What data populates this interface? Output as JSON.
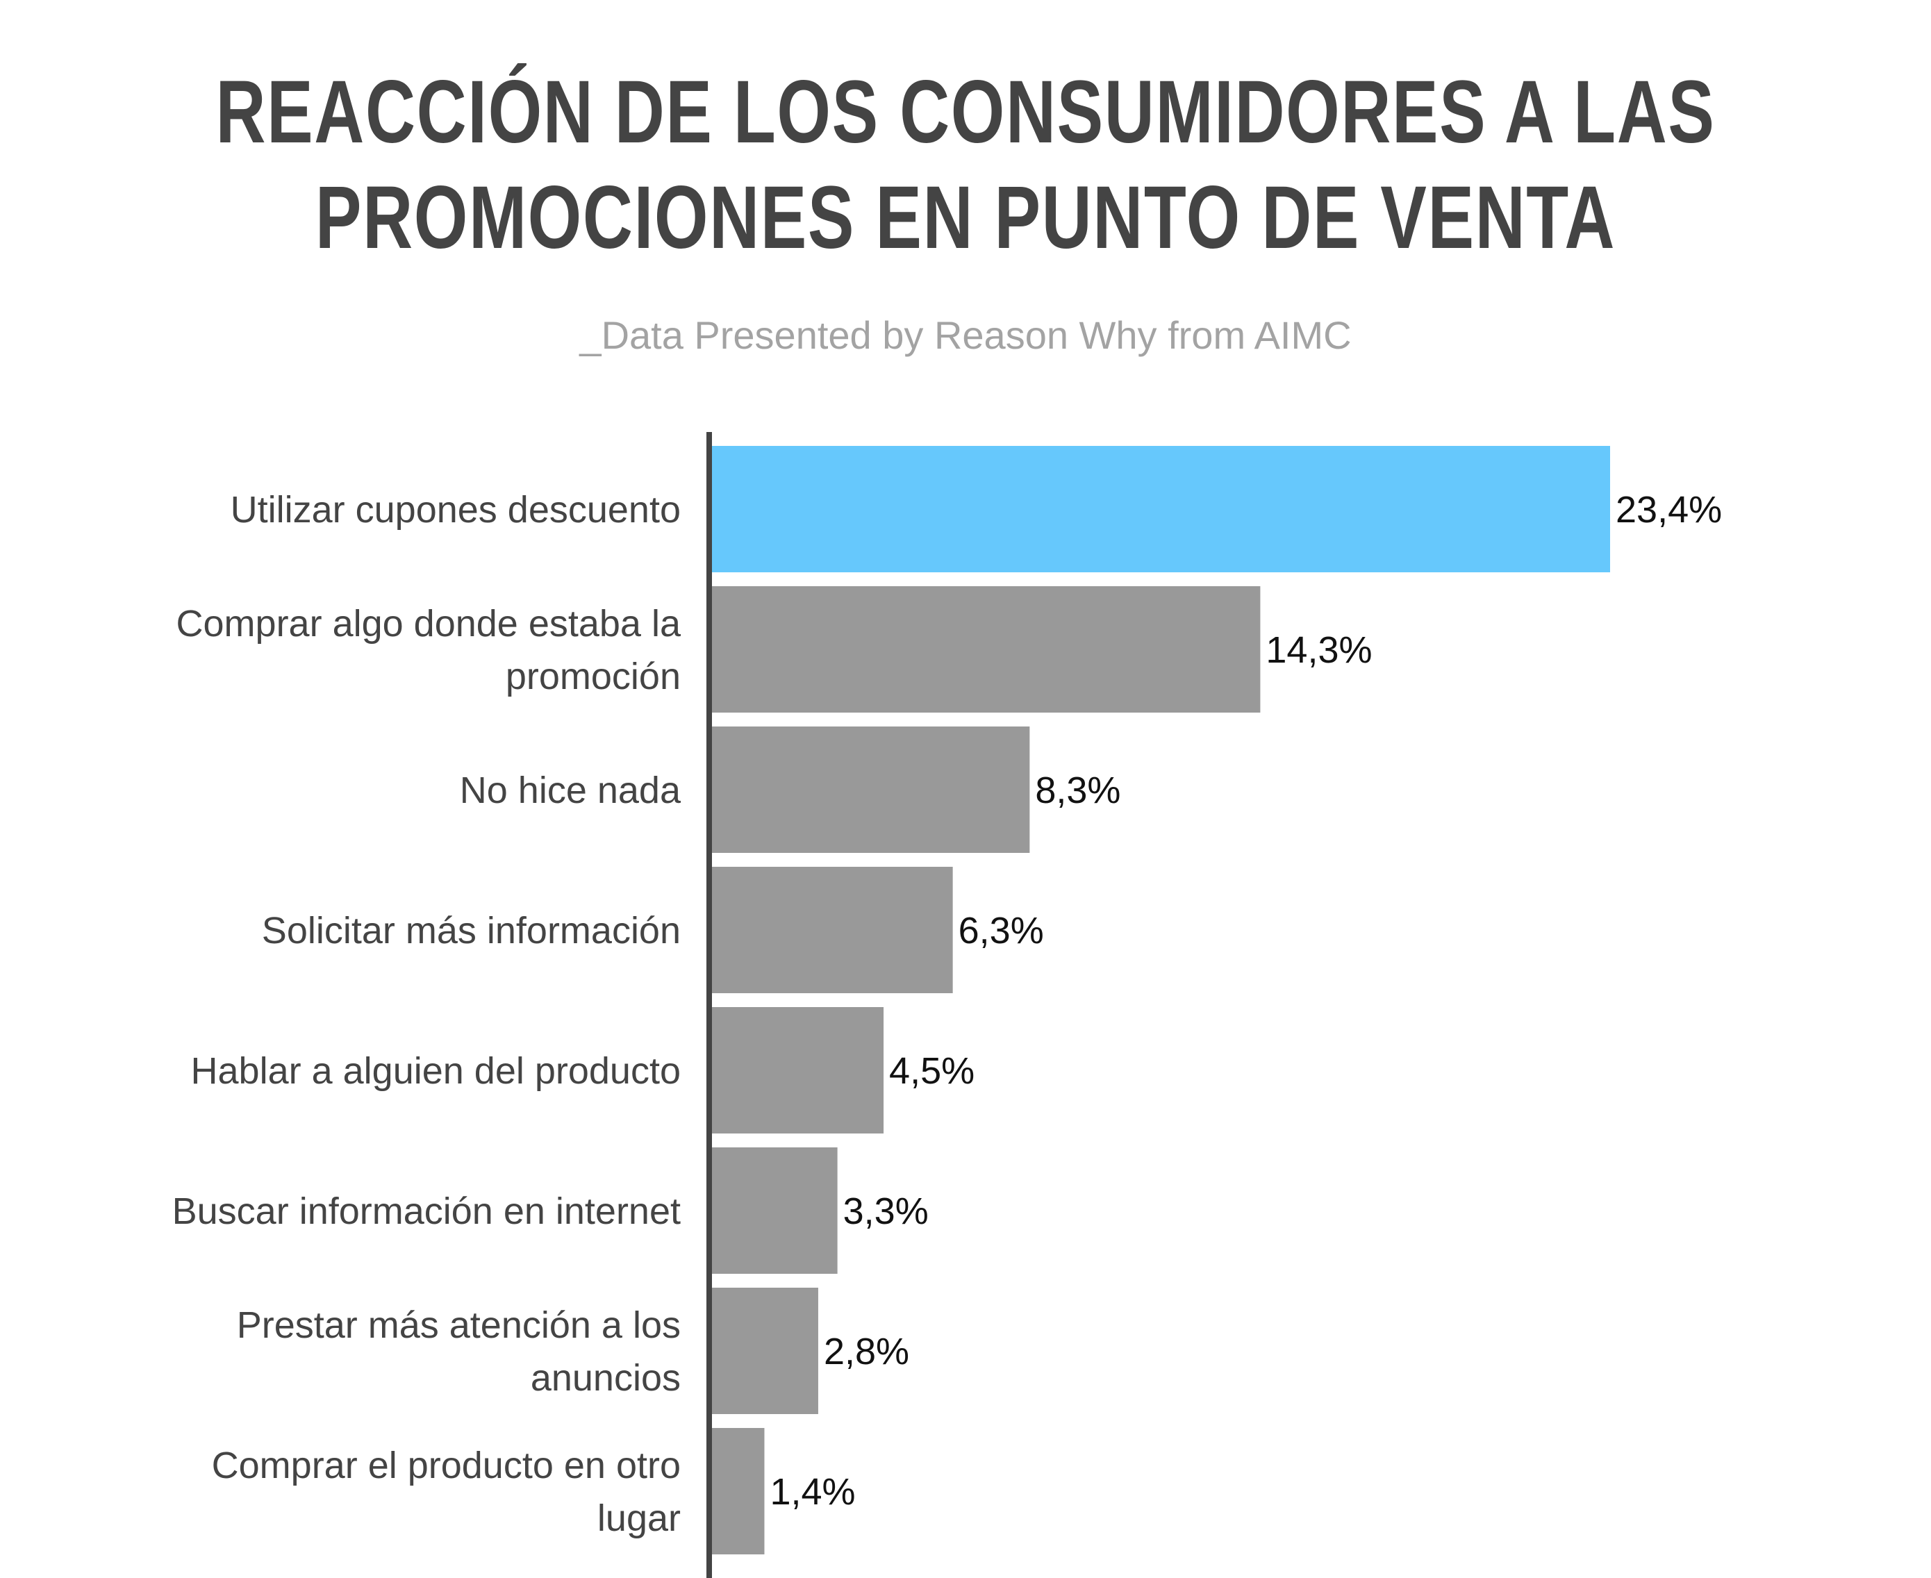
{
  "chart_data": {
    "type": "bar",
    "orientation": "horizontal",
    "title_lines": [
      "REACCIÓN DE LOS CONSUMIDORES A LAS",
      "PROMOCIONES EN PUNTO DE VENTA"
    ],
    "subtitle": "_Data Presented by Reason Why from AIMC",
    "categories": [
      [
        "Utilizar cupones descuento"
      ],
      [
        "Comprar algo donde estaba la",
        "promoción"
      ],
      [
        "No hice nada"
      ],
      [
        "Solicitar más información"
      ],
      [
        "Hablar a alguien del producto"
      ],
      [
        "Buscar información en internet"
      ],
      [
        "Prestar más atención a los",
        "anuncios"
      ],
      [
        "Comprar el producto en otro",
        "lugar"
      ]
    ],
    "values": [
      23.4,
      14.3,
      8.3,
      6.3,
      4.5,
      3.3,
      2.8,
      1.4
    ],
    "value_labels": [
      "23,4%",
      "14,3%",
      "8,3%",
      "6,3%",
      "4,5%",
      "3,3%",
      "2,8%",
      "1,4%"
    ],
    "highlight_color": "#66c8fc",
    "bar_color": "#999999",
    "axis_color": "#444444",
    "grid": false,
    "legend": false
  }
}
